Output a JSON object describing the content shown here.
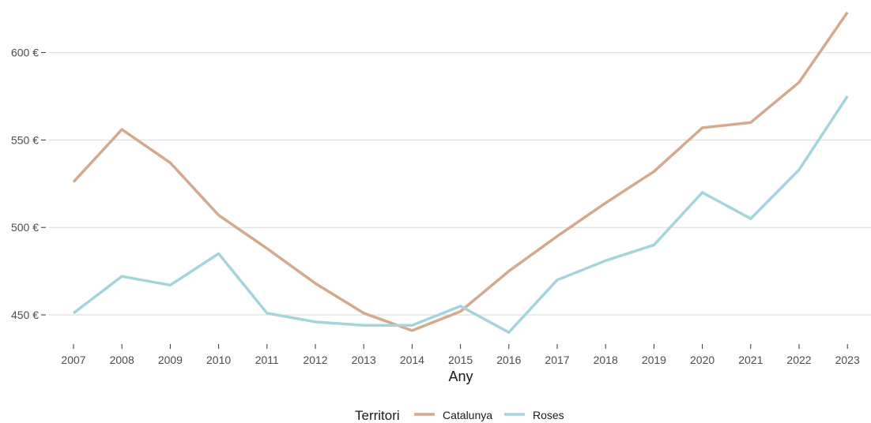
{
  "chart_data": {
    "type": "line",
    "xlabel": "Any",
    "x": [
      2007,
      2008,
      2009,
      2010,
      2011,
      2012,
      2013,
      2014,
      2015,
      2016,
      2017,
      2018,
      2019,
      2020,
      2021,
      2022,
      2023
    ],
    "y_ticks": [
      450,
      500,
      550,
      600
    ],
    "y_tick_labels": [
      "450 €",
      "500 €",
      "550 €",
      "600 €"
    ],
    "ylim": [
      440,
      623
    ],
    "grid": "horizontal",
    "legend": {
      "title": "Territori",
      "placement": "bottom"
    },
    "series": [
      {
        "name": "Catalunya",
        "color": "#d4a98c",
        "values": [
          526,
          556,
          537,
          507,
          488,
          468,
          451,
          441,
          452,
          475,
          495,
          514,
          532,
          557,
          560,
          583,
          623
        ]
      },
      {
        "name": "Roses",
        "color": "#a4d4dc",
        "values": [
          451,
          472,
          467,
          485,
          451,
          446,
          444,
          444,
          455,
          440,
          470,
          481,
          490,
          520,
          505,
          533,
          575
        ]
      }
    ]
  }
}
